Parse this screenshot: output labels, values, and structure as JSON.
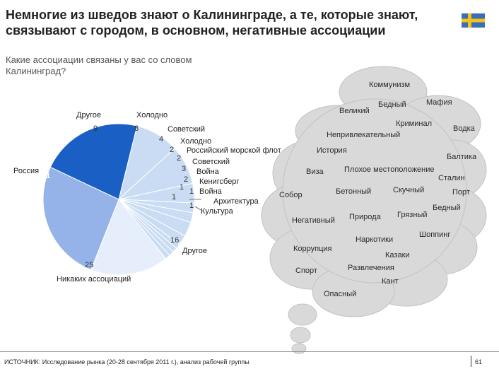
{
  "title": "Немногие из шведов знают о Калининграде, а те, которые знают, связывают с городом, в основном, негативные ассоциации",
  "subtitle": "Какие ассоциации связаны у вас со словом Калининград?",
  "flag": {
    "colors": {
      "blue": "#3a6fb7",
      "yellow": "#f3c21b"
    }
  },
  "chart_data": {
    "type": "pie",
    "title": "Какие ассоциации связаны у вас со словом Калининград?",
    "slices": [
      {
        "label": "Другое",
        "value": 9,
        "color": "#c9dcf3"
      },
      {
        "label": "Холодно",
        "value": 8,
        "color": "#c9dcf3"
      },
      {
        "label": "Советский",
        "value": 4,
        "color": "#c9dcf3"
      },
      {
        "label": "Холодно",
        "value": 2,
        "color": "#c9dcf3"
      },
      {
        "label": "Российский морской флот",
        "value": 2,
        "color": "#c9dcf3"
      },
      {
        "label": "Советский",
        "value": 3,
        "color": "#c9dcf3"
      },
      {
        "label": "Война",
        "value": 2,
        "color": "#c9dcf3"
      },
      {
        "label": "Кенигсберг",
        "value": 1,
        "color": "#c9dcf3"
      },
      {
        "label": "Война",
        "value": 1,
        "color": "#c9dcf3"
      },
      {
        "label": "Архитектура",
        "value": 1,
        "color": "#c9dcf3"
      },
      {
        "label": "Культура",
        "value": 1,
        "color": "#c9dcf3"
      },
      {
        "label": "Другое",
        "value": 16,
        "color": "#e6eefb"
      },
      {
        "label": "Никаких ассоциаций",
        "value": 25,
        "color": "#95b3e8"
      },
      {
        "label": "Россия",
        "value": 21,
        "color": "#1a5fc4"
      }
    ],
    "cloud_words": [
      "Коммунизм",
      "Мафия",
      "Бедный",
      "Великий",
      "Криминал",
      "Водка",
      "Непривлекательный",
      "История",
      "Балтика",
      "Плохое местоположение",
      "Виза",
      "Сталин",
      "Бетонный",
      "Скучный",
      "Порт",
      "Собор",
      "Бедный",
      "Грязный",
      "Негативный",
      "Природа",
      "Шоппинг",
      "Наркотики",
      "Коррупция",
      "Казаки",
      "Развлечения",
      "Спорт",
      "Кант",
      "Опасный"
    ]
  },
  "footer": {
    "source": "ИСТОЧНИК: Исследование рынка (20-28 сентября 2011 г.), анализ рабочей группы",
    "page": "61"
  }
}
